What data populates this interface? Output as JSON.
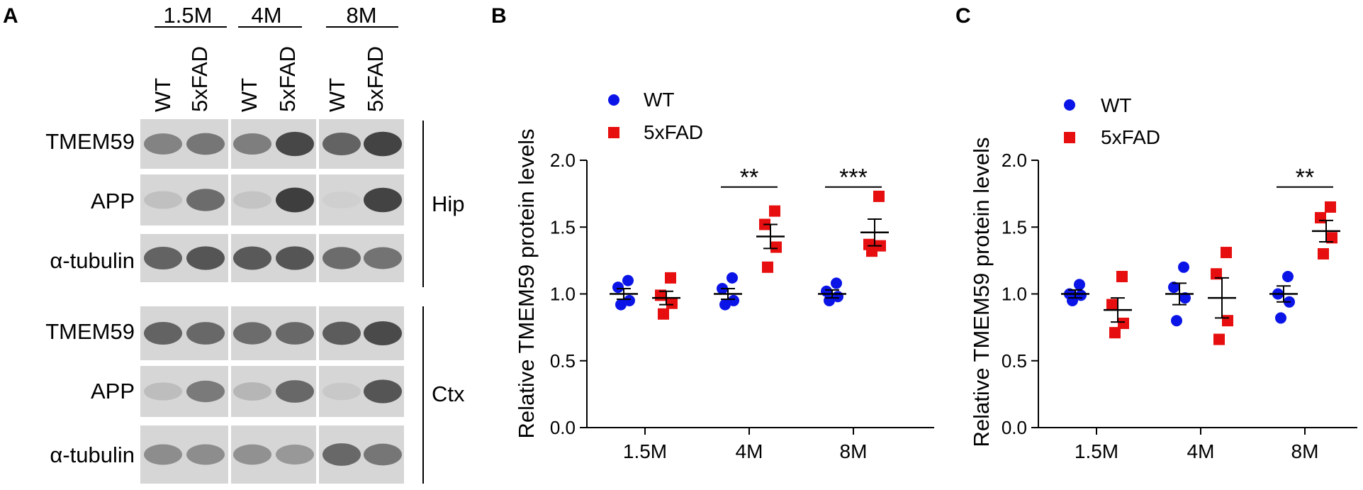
{
  "panels": {
    "a_letter": "A",
    "b_letter": "B",
    "c_letter": "C"
  },
  "blot": {
    "ages": [
      "1.5M",
      "4M",
      "8M"
    ],
    "genotypes": [
      "WT",
      "5xFAD",
      "WT",
      "5xFAD",
      "WT",
      "5xFAD"
    ],
    "hip_rows": [
      "TMEM59",
      "APP",
      "α-tubulin"
    ],
    "ctx_rows": [
      "TMEM59",
      "APP",
      "α-tubulin"
    ],
    "tissues": [
      "Hip",
      "Ctx"
    ],
    "band_intensity": {
      "hip_tmem59": [
        0.55,
        0.62,
        0.58,
        0.88,
        0.72,
        0.9
      ],
      "hip_app": [
        0.22,
        0.68,
        0.2,
        0.92,
        0.14,
        0.9
      ],
      "hip_tubulin": [
        0.72,
        0.8,
        0.78,
        0.8,
        0.68,
        0.64
      ],
      "ctx_tmem59": [
        0.72,
        0.7,
        0.68,
        0.7,
        0.76,
        0.86
      ],
      "ctx_app": [
        0.24,
        0.6,
        0.28,
        0.7,
        0.18,
        0.8
      ],
      "ctx_tubulin": [
        0.5,
        0.5,
        0.48,
        0.44,
        0.7,
        0.62
      ]
    }
  },
  "chart_data": [
    {
      "type": "scatter",
      "panel": "B",
      "title": "",
      "ylabel": "Relative TMEM59 protein levels",
      "xlabel": "",
      "categories": [
        "1.5M",
        "4M",
        "8M"
      ],
      "ylim": [
        0.0,
        2.0
      ],
      "yticks": [
        "0.0",
        "0.5",
        "1.0",
        "1.5",
        "2.0"
      ],
      "legend": [
        "WT",
        "5xFAD"
      ],
      "series": [
        {
          "name": "WT",
          "color": "#0a14e6",
          "marker": "circle",
          "points": [
            [
              1.1,
              1.05,
              0.95,
              0.92
            ],
            [
              1.12,
              1.04,
              0.95,
              0.92
            ],
            [
              1.08,
              1.02,
              0.98,
              0.95
            ]
          ],
          "mean": [
            1.0,
            1.0,
            1.0
          ],
          "sem": [
            0.04,
            0.04,
            0.03
          ]
        },
        {
          "name": "5xFAD",
          "color": "#e60e0e",
          "marker": "square",
          "points": [
            [
              1.12,
              0.99,
              0.93,
              0.85
            ],
            [
              1.62,
              1.52,
              1.35,
              1.2
            ],
            [
              1.73,
              1.37,
              1.36,
              1.32
            ]
          ],
          "mean": [
            0.97,
            1.43,
            1.46
          ],
          "sem": [
            0.05,
            0.09,
            0.1
          ]
        }
      ],
      "significance": [
        {
          "category": "4M",
          "label": "**",
          "y": 1.8
        },
        {
          "category": "8M",
          "label": "***",
          "y": 1.8
        }
      ]
    },
    {
      "type": "scatter",
      "panel": "C",
      "title": "",
      "ylabel": "Relative TMEM59 protein levels",
      "xlabel": "",
      "categories": [
        "1.5M",
        "4M",
        "8M"
      ],
      "ylim": [
        0.0,
        2.0
      ],
      "yticks": [
        "0.0",
        "0.5",
        "1.0",
        "1.5",
        "2.0"
      ],
      "legend": [
        "WT",
        "5xFAD"
      ],
      "series": [
        {
          "name": "WT",
          "color": "#0a14e6",
          "marker": "circle",
          "points": [
            [
              1.07,
              1.0,
              0.99,
              0.95
            ],
            [
              1.2,
              1.05,
              0.97,
              0.8
            ],
            [
              1.13,
              1.0,
              0.94,
              0.82
            ]
          ],
          "mean": [
            1.0,
            1.0,
            1.0
          ],
          "sem": [
            0.03,
            0.08,
            0.06
          ]
        },
        {
          "name": "5xFAD",
          "color": "#e60e0e",
          "marker": "square",
          "points": [
            [
              1.13,
              0.92,
              0.78,
              0.71
            ],
            [
              1.31,
              1.15,
              0.8,
              0.66
            ],
            [
              1.65,
              1.57,
              1.42,
              1.3
            ]
          ],
          "mean": [
            0.88,
            0.97,
            1.47
          ],
          "sem": [
            0.09,
            0.15,
            0.08
          ]
        }
      ],
      "significance": [
        {
          "category": "8M",
          "label": "**",
          "y": 1.8
        }
      ]
    }
  ]
}
